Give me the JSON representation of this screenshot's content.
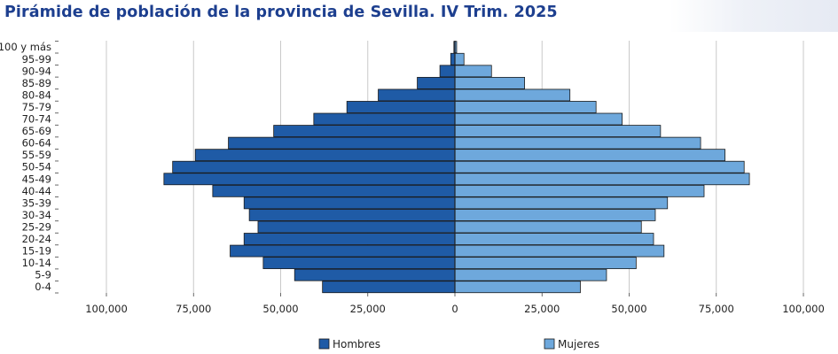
{
  "title": "Pirámide de población de la provincia de Sevilla. IV Trim. 2025",
  "chart_data": {
    "type": "bar",
    "orientation": "horizontal-pyramid",
    "categories": [
      "0-4",
      "5-9",
      "10-14",
      "15-19",
      "20-24",
      "25-29",
      "30-34",
      "35-39",
      "40-44",
      "45-49",
      "50-54",
      "55-59",
      "60-64",
      "65-69",
      "70-74",
      "75-79",
      "80-84",
      "85-89",
      "90-94",
      "95-99",
      "100 y más"
    ],
    "series": [
      {
        "name": "Hombres",
        "color": "#1f5ba6",
        "values": [
          38000,
          46000,
          55000,
          64500,
          60500,
          56500,
          59000,
          60500,
          69500,
          83500,
          81000,
          74500,
          65000,
          52000,
          40500,
          31000,
          22000,
          10800,
          4300,
          1200,
          300
        ]
      },
      {
        "name": "Mujeres",
        "color": "#6ea8dc",
        "values": [
          36000,
          43500,
          52000,
          60000,
          57000,
          53500,
          57500,
          61000,
          71500,
          84500,
          83000,
          77500,
          70500,
          59000,
          48000,
          40500,
          33000,
          20000,
          10500,
          2600,
          500
        ]
      }
    ],
    "xticks": [
      "100,000",
      "75,000",
      "50,000",
      "25,000",
      "0",
      "25,000",
      "50,000",
      "75,000",
      "100,000"
    ],
    "xlim": [
      -100000,
      100000
    ],
    "grid": "vertical",
    "legend": "bottom-center"
  }
}
